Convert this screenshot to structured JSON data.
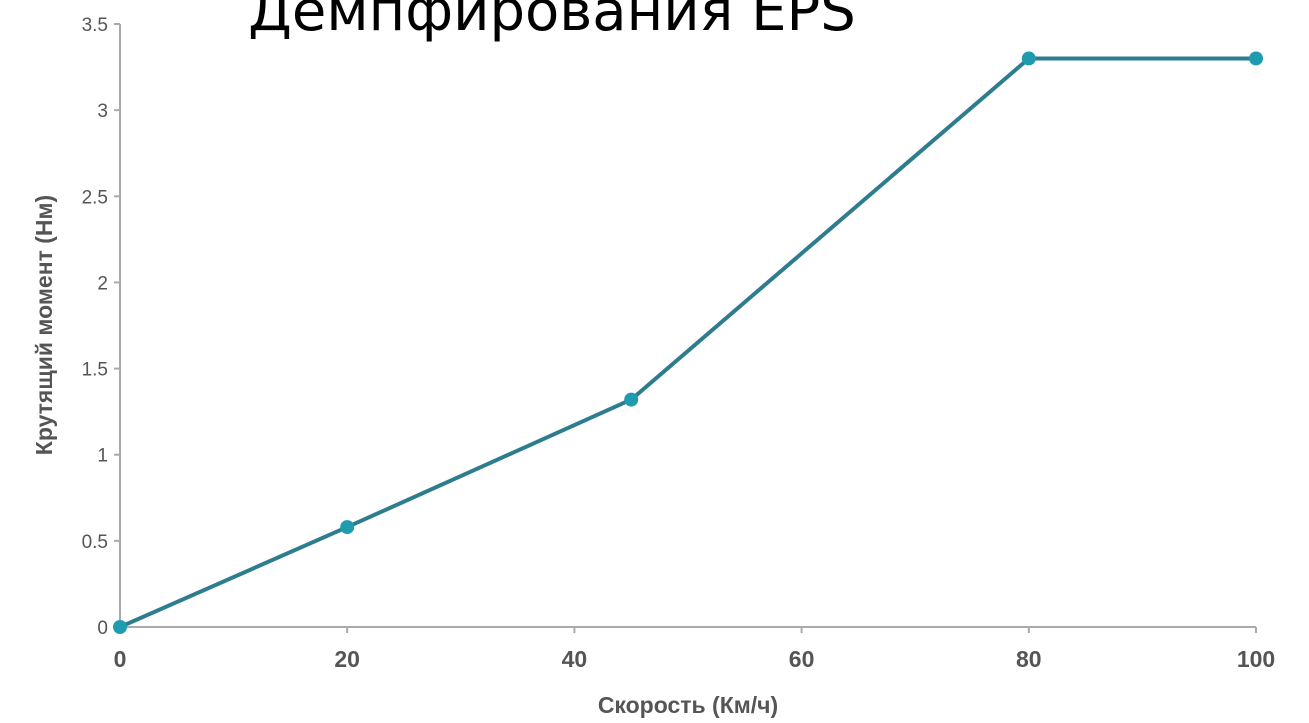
{
  "chart_data": {
    "type": "line",
    "title": "Демпфирования EPS",
    "xlabel": "Скорость (Км/ч)",
    "ylabel": "Крутящий момент (Нм)",
    "xlim": [
      0,
      100
    ],
    "ylim": [
      0,
      3.5
    ],
    "x_ticks": [
      "0",
      "20",
      "40",
      "60",
      "80",
      "100"
    ],
    "y_ticks": [
      "0",
      "0.5",
      "1",
      "1.5",
      "2",
      "2.5",
      "3",
      "3.5"
    ],
    "grid": false,
    "series": [
      {
        "x": [
          0,
          20,
          45,
          80,
          100
        ],
        "y": [
          0,
          0.58,
          1.32,
          3.3,
          3.3
        ]
      }
    ],
    "colors": {
      "line": "#2e7d8f",
      "marker": "#1f9bb0",
      "axis": "#aaaaaa"
    }
  }
}
